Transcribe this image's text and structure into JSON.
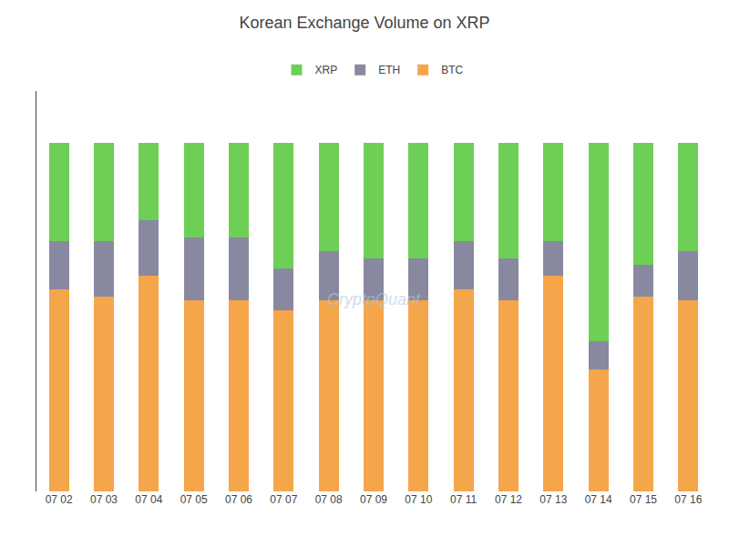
{
  "chart_data": {
    "type": "bar",
    "title": "Korean Exchange Volume on XRP",
    "stacked": true,
    "categories": [
      "07 02",
      "07 03",
      "07 04",
      "07 05",
      "07 06",
      "07 07",
      "07 08",
      "07 09",
      "07 10",
      "07 11",
      "07 12",
      "07 13",
      "07 14",
      "07 15",
      "07 16"
    ],
    "series": [
      {
        "name": "BTC",
        "color": "#F5A54A",
        "values": [
          58,
          56,
          62,
          55,
          55,
          52,
          55,
          55,
          55,
          58,
          55,
          62,
          35,
          56,
          55
        ]
      },
      {
        "name": "ETH",
        "color": "#8889A0",
        "values": [
          14,
          16,
          16,
          18,
          18,
          12,
          14,
          12,
          12,
          14,
          12,
          10,
          8,
          9,
          14
        ]
      },
      {
        "name": "XRP",
        "color": "#6DCF56",
        "values": [
          28,
          28,
          22,
          27,
          27,
          36,
          31,
          33,
          33,
          28,
          33,
          28,
          57,
          35,
          31
        ]
      }
    ],
    "ylim": [
      0,
      115
    ],
    "tick_labels": "x",
    "grid": false,
    "legend": "top",
    "annotations": [
      "CryptoQuant"
    ]
  }
}
